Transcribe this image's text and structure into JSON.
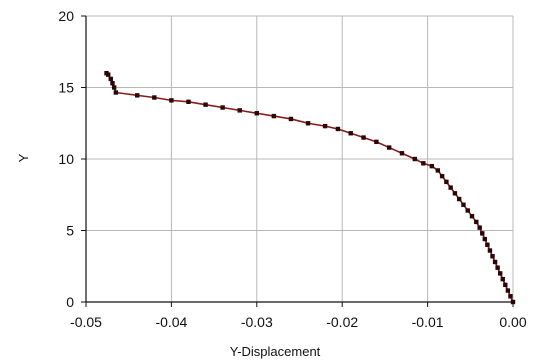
{
  "chart_data": {
    "type": "line",
    "title": "",
    "xlabel": "Y-Displacement",
    "ylabel": "Y",
    "xlim": [
      -0.05,
      0.0
    ],
    "ylim": [
      0,
      20
    ],
    "xticks": [
      -0.05,
      -0.04,
      -0.03,
      -0.02,
      -0.01,
      0.0
    ],
    "xtick_labels": [
      "-0.05",
      "-0.04",
      "-0.03",
      "-0.02",
      "-0.01",
      "0.00"
    ],
    "yticks": [
      0,
      5,
      10,
      15,
      20
    ],
    "ytick_labels": [
      "0",
      "5",
      "10",
      "15",
      "20"
    ],
    "grid": true,
    "legend": "none",
    "colors": {
      "line": "#8b1a1a",
      "marker": "#2a0606",
      "grid": "#b8b8b8",
      "axis": "#111111"
    },
    "series": [
      {
        "points": [
          [
            0.0,
            0.0
          ],
          [
            -0.0003,
            0.4
          ],
          [
            -0.0006,
            0.8
          ],
          [
            -0.0009,
            1.2
          ],
          [
            -0.0012,
            1.6
          ],
          [
            -0.0015,
            2.0
          ],
          [
            -0.0018,
            2.4
          ],
          [
            -0.0021,
            2.8
          ],
          [
            -0.0024,
            3.2
          ],
          [
            -0.0027,
            3.6
          ],
          [
            -0.003,
            4.0
          ],
          [
            -0.0033,
            4.4
          ],
          [
            -0.0036,
            4.8
          ],
          [
            -0.0039,
            5.2
          ],
          [
            -0.0043,
            5.6
          ],
          [
            -0.0048,
            6.0
          ],
          [
            -0.0053,
            6.4
          ],
          [
            -0.0058,
            6.8
          ],
          [
            -0.0063,
            7.2
          ],
          [
            -0.0068,
            7.6
          ],
          [
            -0.0073,
            8.0
          ],
          [
            -0.0078,
            8.4
          ],
          [
            -0.0083,
            8.8
          ],
          [
            -0.0088,
            9.2
          ],
          [
            -0.0095,
            9.5
          ],
          [
            -0.0105,
            9.7
          ],
          [
            -0.0115,
            10.0
          ],
          [
            -0.013,
            10.4
          ],
          [
            -0.0145,
            10.8
          ],
          [
            -0.016,
            11.2
          ],
          [
            -0.0175,
            11.5
          ],
          [
            -0.019,
            11.8
          ],
          [
            -0.0205,
            12.1
          ],
          [
            -0.022,
            12.3
          ],
          [
            -0.024,
            12.5
          ],
          [
            -0.026,
            12.8
          ],
          [
            -0.028,
            13.0
          ],
          [
            -0.03,
            13.2
          ],
          [
            -0.032,
            13.4
          ],
          [
            -0.034,
            13.6
          ],
          [
            -0.036,
            13.8
          ],
          [
            -0.038,
            14.0
          ],
          [
            -0.04,
            14.1
          ],
          [
            -0.042,
            14.3
          ],
          [
            -0.044,
            14.45
          ],
          [
            -0.0465,
            14.65
          ],
          [
            -0.0467,
            15.0
          ],
          [
            -0.0469,
            15.3
          ],
          [
            -0.0471,
            15.6
          ],
          [
            -0.0474,
            15.9
          ],
          [
            -0.0476,
            16.0
          ]
        ]
      }
    ]
  }
}
